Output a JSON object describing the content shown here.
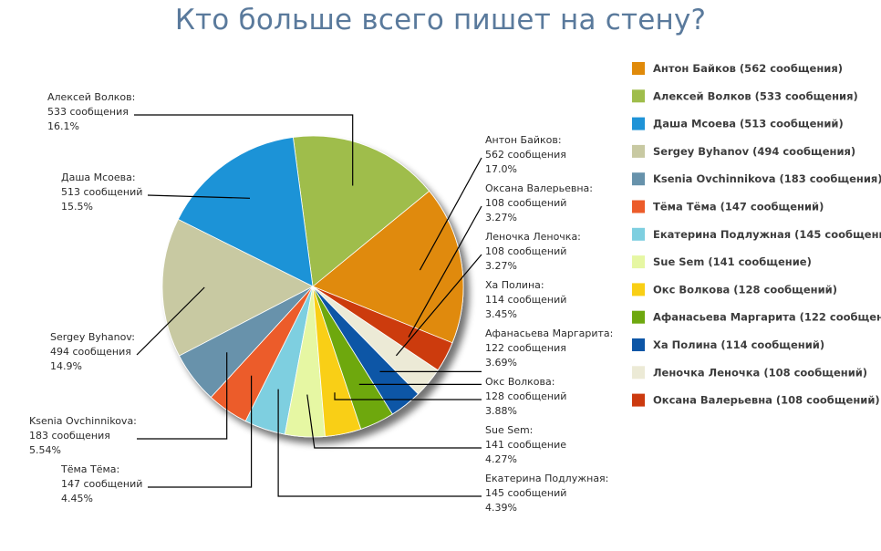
{
  "chart_data": {
    "type": "pie",
    "title": "Кто больше всего пишет на стену?",
    "slices": [
      {
        "name": "Антон Байков",
        "value": 562,
        "count_text": "562 сообщения",
        "percent_text": "17.0%",
        "legend": "Антон Байков (562 сообщения)",
        "color": "#e08a0a"
      },
      {
        "name": "Алексей Волков",
        "value": 533,
        "count_text": "533 сообщения",
        "percent_text": "16.1%",
        "legend": "Алексей Волков (533 сообщения)",
        "color": "#9fbd4b"
      },
      {
        "name": "Даша Мсоева",
        "value": 513,
        "count_text": "513 сообщений",
        "percent_text": "15.5%",
        "legend": "Даша Мсоева (513 сообщений)",
        "color": "#1f93d7"
      },
      {
        "name": "Sergey Byhanov",
        "value": 494,
        "count_text": "494 сообщения",
        "percent_text": "14.9%",
        "legend": "Sergey Byhanov (494 сообщения)",
        "color": "#c8c9a2"
      },
      {
        "name": "Ksenia Ovchinnikova",
        "value": 183,
        "count_text": "183 сообщения",
        "percent_text": "5.54%",
        "legend": "Ksenia Ovchinnikova (183 сообщения)",
        "color": "#6792ab"
      },
      {
        "name": "Тёма Тёма",
        "value": 147,
        "count_text": "147 сообщений",
        "percent_text": "4.45%",
        "legend": "Тёма Тёма (147 сообщений)",
        "color": "#ec5c2a"
      },
      {
        "name": "Екатерина Подлужная",
        "value": 145,
        "count_text": "145 сообщений",
        "percent_text": "4.39%",
        "legend": "Екатерина Подлужная (145 сообщений)",
        "color": "#7ecfe0"
      },
      {
        "name": "Sue Sem",
        "value": 141,
        "count_text": "141 сообщение",
        "percent_text": "4.27%",
        "legend": "Sue Sem (141 сообщение)",
        "color": "#e6f7a3"
      },
      {
        "name": "Окс Волкова",
        "value": 128,
        "count_text": "128 сообщений",
        "percent_text": "3.88%",
        "legend": "Окс Волкова (128 сообщений)",
        "color": "#f9cf15"
      },
      {
        "name": "Афанасьева Маргарита",
        "value": 122,
        "count_text": "122 сообщения",
        "percent_text": "3.69%",
        "legend": "Афанасьева Маргарита (122 сообщения)",
        "color": "#6ea80f"
      },
      {
        "name": "Ха Полина",
        "value": 114,
        "count_text": "114 сообщений",
        "percent_text": "3.45%",
        "legend": "Ха Полина (114 сообщений)",
        "color": "#0d56a6"
      },
      {
        "name": "Леночка Леночка",
        "value": 108,
        "count_text": "108 сообщений",
        "percent_text": "3.27%",
        "legend": "Леночка Леночка (108 сообщений)",
        "color": "#ecead6"
      },
      {
        "name": "Оксана Валерьевна",
        "value": 108,
        "count_text": "108 сообщений",
        "percent_text": "3.27%",
        "legend": "Оксана Валерьевна (108 сообщений)",
        "color": "#cc3a0f"
      }
    ]
  }
}
